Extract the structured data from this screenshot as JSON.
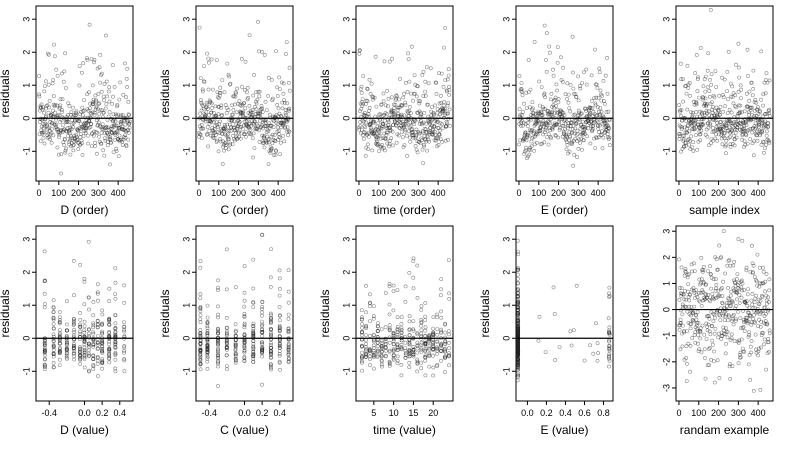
{
  "chart_data": [
    {
      "type": "scatter",
      "xlabel": "D (order)",
      "ylabel": "residuals",
      "xlim": [
        -15,
        475
      ],
      "ylim": [
        -1.9,
        3.4
      ],
      "xticks": [
        0,
        100,
        200,
        300,
        400
      ],
      "yticks": [
        -1,
        0,
        1,
        2,
        3
      ],
      "hline": 0,
      "pattern": "order",
      "n": 460,
      "grid": false
    },
    {
      "type": "scatter",
      "xlabel": "C (order)",
      "ylabel": "residuals",
      "xlim": [
        -15,
        475
      ],
      "ylim": [
        -1.9,
        3.4
      ],
      "xticks": [
        0,
        100,
        200,
        300,
        400
      ],
      "yticks": [
        -1,
        0,
        1,
        2,
        3
      ],
      "hline": 0,
      "pattern": "order",
      "n": 460,
      "grid": false
    },
    {
      "type": "scatter",
      "xlabel": "time (order)",
      "ylabel": "residuals",
      "xlim": [
        -15,
        475
      ],
      "ylim": [
        -1.9,
        3.4
      ],
      "xticks": [
        0,
        100,
        200,
        300,
        400
      ],
      "yticks": [
        -1,
        0,
        1,
        2,
        3
      ],
      "hline": 0,
      "pattern": "order",
      "n": 460,
      "grid": false
    },
    {
      "type": "scatter",
      "xlabel": "E (order)",
      "ylabel": "residuals",
      "xlim": [
        -15,
        475
      ],
      "ylim": [
        -1.9,
        3.4
      ],
      "xticks": [
        0,
        100,
        200,
        300,
        400
      ],
      "yticks": [
        -1,
        0,
        1,
        2,
        3
      ],
      "hline": 0,
      "pattern": "order",
      "n": 460,
      "grid": false
    },
    {
      "type": "scatter",
      "xlabel": "sample index",
      "ylabel": "residuals",
      "xlim": [
        -15,
        475
      ],
      "ylim": [
        -1.9,
        3.4
      ],
      "xticks": [
        0,
        100,
        200,
        300,
        400
      ],
      "yticks": [
        -1,
        0,
        1,
        2,
        3
      ],
      "hline": 0,
      "pattern": "order",
      "n": 460,
      "grid": false
    },
    {
      "type": "scatter",
      "xlabel": "D (value)",
      "ylabel": "residuals",
      "xlim": [
        -0.55,
        0.55
      ],
      "ylim": [
        -1.9,
        3.4
      ],
      "xticks": [
        -0.4,
        0.0,
        0.2,
        0.4
      ],
      "xticklabels": [
        "-0.4",
        "0.0",
        "0.2",
        "0.4"
      ],
      "yticks": [
        -1,
        0,
        1,
        2,
        3
      ],
      "hline": 0,
      "pattern": "discrete",
      "xvalues": [
        -0.45,
        -0.35,
        -0.28,
        -0.2,
        -0.12,
        -0.05,
        0.0,
        0.05,
        0.1,
        0.15,
        0.2,
        0.28,
        0.35,
        0.45
      ],
      "n": 380,
      "grid": false
    },
    {
      "type": "scatter",
      "xlabel": "C (value)",
      "ylabel": "residuals",
      "xlim": [
        -0.55,
        0.55
      ],
      "ylim": [
        -1.9,
        3.4
      ],
      "xticks": [
        -0.4,
        0.0,
        0.2,
        0.4
      ],
      "xticklabels": [
        "-0.4",
        "0.0",
        "0.2",
        "0.4"
      ],
      "yticks": [
        -1,
        0,
        1,
        2,
        3
      ],
      "hline": 0,
      "pattern": "discrete",
      "xvalues": [
        -0.5,
        -0.42,
        -0.3,
        -0.2,
        -0.1,
        0.0,
        0.1,
        0.2,
        0.3,
        0.4,
        0.5
      ],
      "n": 380,
      "grid": false
    },
    {
      "type": "scatter",
      "xlabel": "time (value)",
      "ylabel": "residuals",
      "xlim": [
        0.5,
        25
      ],
      "ylim": [
        -1.9,
        3.4
      ],
      "xticks": [
        5,
        10,
        15,
        20
      ],
      "xticklabels": [
        "5",
        "10",
        "15",
        "20"
      ],
      "yticks": [
        -1,
        0,
        1,
        2,
        3
      ],
      "hline": 0,
      "pattern": "discrete",
      "xvalues": [
        2,
        3,
        4,
        5,
        6,
        7,
        8,
        9,
        10,
        11,
        12,
        13,
        14,
        15,
        16,
        17,
        18,
        19,
        20,
        21,
        22,
        23,
        24
      ],
      "n": 400,
      "grid": false
    },
    {
      "type": "scatter",
      "xlabel": "E (value)",
      "ylabel": "residuals",
      "xlim": [
        -0.12,
        0.9
      ],
      "ylim": [
        -1.9,
        3.4
      ],
      "xticks": [
        0.0,
        0.2,
        0.4,
        0.6,
        0.8
      ],
      "xticklabels": [
        "0.0",
        "0.2",
        "0.4",
        "0.6",
        "0.8"
      ],
      "yticks": [
        -1,
        0,
        1,
        2,
        3
      ],
      "hline": 0,
      "pattern": "E",
      "n": 320,
      "grid": false
    },
    {
      "type": "scatter",
      "xlabel": "randam example",
      "ylabel": "residuals",
      "xlim": [
        -15,
        475
      ],
      "ylim": [
        -3.5,
        3.2
      ],
      "xticks": [
        0,
        100,
        200,
        300,
        400
      ],
      "yticks": [
        -3,
        -2,
        -1,
        0,
        1,
        2,
        3
      ],
      "hline": 0,
      "pattern": "random",
      "n": 460,
      "grid": false
    }
  ]
}
